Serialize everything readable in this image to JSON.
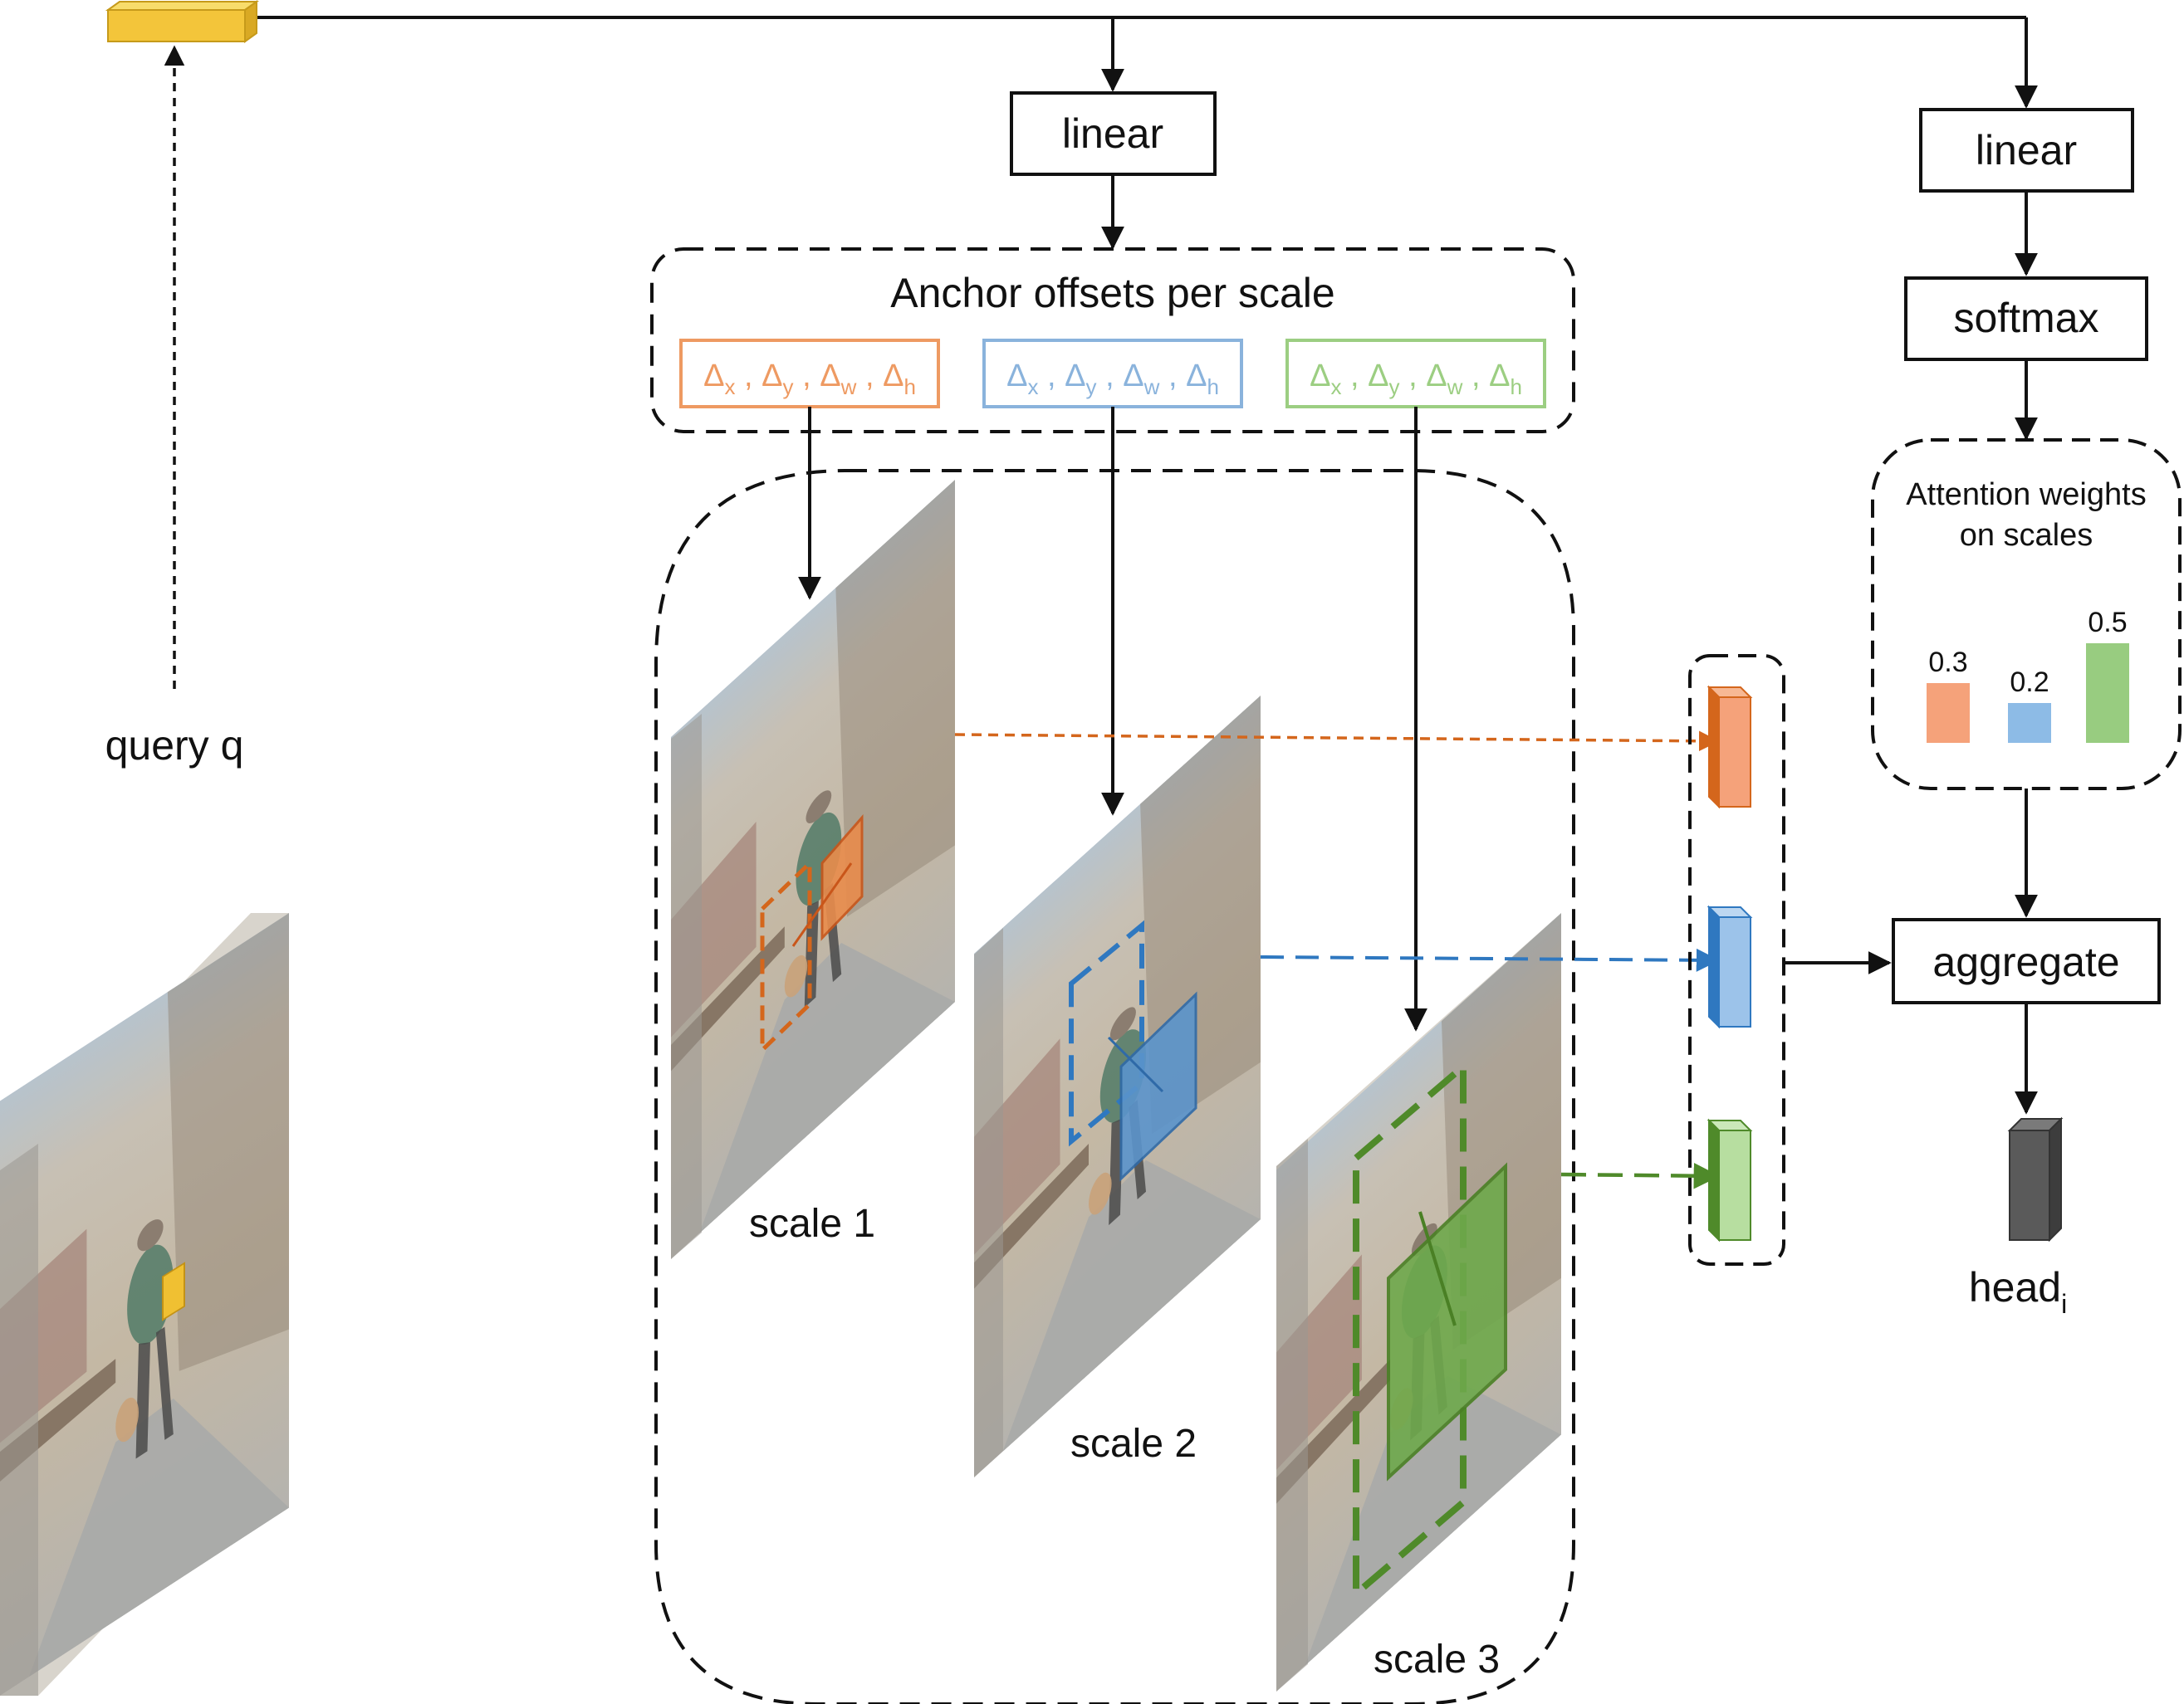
{
  "blocks": {
    "linear_1": "linear",
    "linear_2": "linear",
    "softmax": "softmax",
    "aggregate": "aggregate"
  },
  "anchor_offsets": {
    "title": "Anchor offsets per scale",
    "groups": [
      {
        "symbols": [
          "Δx",
          "Δy",
          "Δw",
          "Δh"
        ],
        "color": "#ee9a62"
      },
      {
        "symbols": [
          "Δx",
          "Δy",
          "Δw",
          "Δh"
        ],
        "color": "#8ab3dc"
      },
      {
        "symbols": [
          "Δx",
          "Δy",
          "Δw",
          "Δh"
        ],
        "color": "#9cce82"
      }
    ]
  },
  "attention": {
    "title_line1": "Attention weights",
    "title_line2": "on scales",
    "weights": [
      {
        "value": 0.3,
        "label": "0.3",
        "color": "#f5a27a"
      },
      {
        "value": 0.2,
        "label": "0.2",
        "color": "#8dbbe6"
      },
      {
        "value": 0.5,
        "label": "0.5",
        "color": "#98cc80"
      }
    ]
  },
  "scales": [
    "scale 1",
    "scale 2",
    "scale 3"
  ],
  "query_label": "query q",
  "output": {
    "base": "head",
    "sub": "i"
  },
  "colors": {
    "scale1": "#d4661c",
    "scale2": "#2f78c0",
    "scale3": "#4f8a2a",
    "query": "#f3c53a",
    "head": "#555555"
  }
}
